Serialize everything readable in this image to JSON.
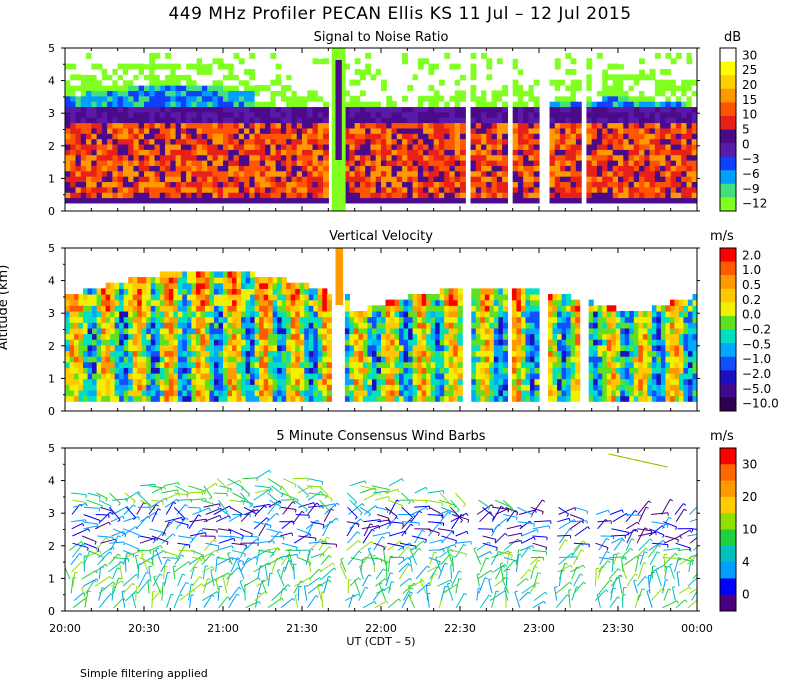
{
  "title": "449 MHz Profiler PECAN Ellis KS 11 Jul – 12 Jul 2015",
  "ylabel": "Altitude (km)",
  "xlabel": "UT  (CDT – 5)",
  "footnote": "Simple filtering applied",
  "chart_data": [
    {
      "type": "heatmap",
      "title": "Signal to Noise Ratio",
      "unit": "dB",
      "xlim": [
        "20:00",
        "00:00"
      ],
      "ylim": [
        0,
        5
      ],
      "x_ticks": [
        "20:00",
        "20:30",
        "21:00",
        "21:30",
        "22:00",
        "22:30",
        "23:00",
        "23:30",
        "00:00"
      ],
      "y_ticks": [
        "0",
        "1",
        "2",
        "3",
        "4",
        "5"
      ],
      "colorbar": {
        "labels": [
          "30",
          "25",
          "20",
          "15",
          "10",
          "5",
          "0",
          "−3",
          "−6",
          "−9",
          "−12"
        ],
        "colors": [
          "#ffffff",
          "#ffff00",
          "#ffd000",
          "#ff9900",
          "#ff5500",
          "#e8201a",
          "#4a0a8a",
          "#5a1aa8",
          "#1040ff",
          "#00a0ff",
          "#40e080",
          "#80ff20"
        ]
      }
    },
    {
      "type": "heatmap",
      "title": "Vertical Velocity",
      "unit": "m/s",
      "xlim": [
        "20:00",
        "00:00"
      ],
      "ylim": [
        0,
        5
      ],
      "x_ticks": [
        "20:00",
        "20:30",
        "21:00",
        "21:30",
        "22:00",
        "22:30",
        "23:00",
        "23:30",
        "00:00"
      ],
      "y_ticks": [
        "0",
        "1",
        "2",
        "3",
        "4",
        "5"
      ],
      "colorbar": {
        "labels": [
          "2.0",
          "1.0",
          "0.5",
          "0.2",
          "0.0",
          "−0.2",
          "−0.5",
          "−1.0",
          "−2.0",
          "−5.0",
          "−10.0"
        ],
        "colors": [
          "#ff0000",
          "#ff5a00",
          "#ff9a00",
          "#ffc800",
          "#f0f000",
          "#60e020",
          "#00e0c0",
          "#00a8ff",
          "#1050ff",
          "#1a10c0",
          "#400a90",
          "#300050"
        ]
      }
    },
    {
      "type": "wind_barbs",
      "title": "5 Minute Consensus Wind Barbs",
      "unit": "m/s",
      "xlim": [
        "20:00",
        "00:00"
      ],
      "ylim": [
        0,
        5
      ],
      "x_ticks": [
        "20:00",
        "20:30",
        "21:00",
        "21:30",
        "22:00",
        "22:30",
        "23:00",
        "23:30",
        "00:00"
      ],
      "y_ticks": [
        "0",
        "1",
        "2",
        "3",
        "4",
        "5"
      ],
      "colorbar": {
        "labels": [
          "30",
          "20",
          "10",
          "4",
          "0"
        ],
        "colors": [
          "#ff0000",
          "#ff6600",
          "#ff9900",
          "#ffcc00",
          "#90e000",
          "#20d040",
          "#00c0c0",
          "#00a0ff",
          "#0000ff",
          "#4a0080"
        ]
      }
    }
  ]
}
